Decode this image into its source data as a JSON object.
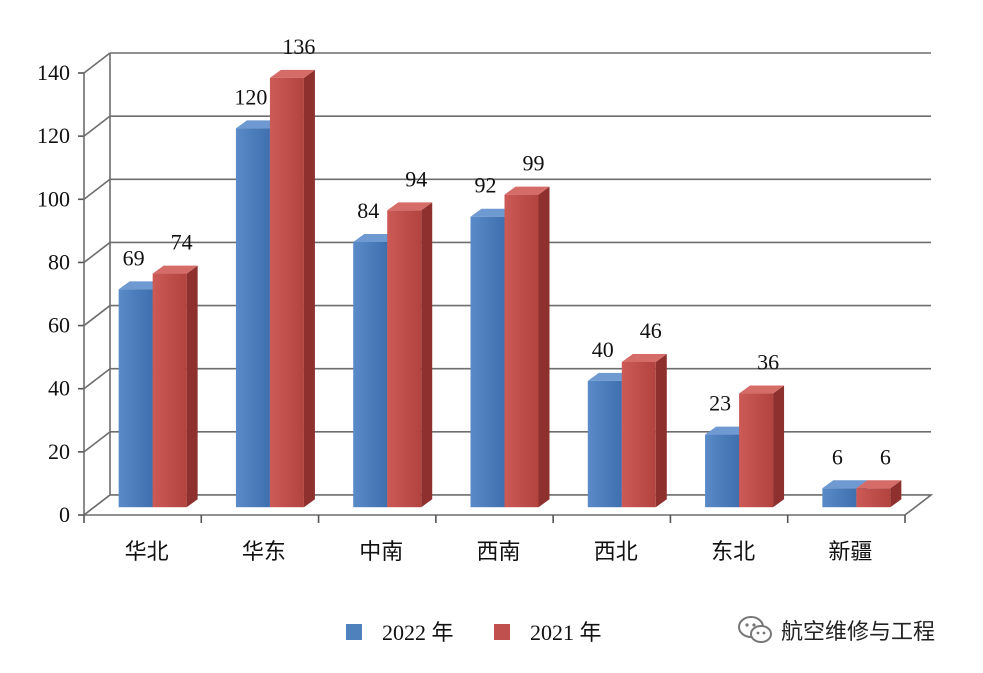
{
  "chart_data": {
    "type": "bar",
    "categories": [
      "华北",
      "华东",
      "中南",
      "西南",
      "西北",
      "东北",
      "新疆"
    ],
    "series": [
      {
        "name": "2022 年",
        "values": [
          69,
          120,
          84,
          92,
          40,
          23,
          6
        ],
        "color": "#4f81bd"
      },
      {
        "name": "2021 年",
        "values": [
          74,
          136,
          94,
          99,
          46,
          36,
          6
        ],
        "color": "#c0504d"
      }
    ],
    "yticks": [
      "0",
      "20",
      "40",
      "60",
      "80",
      "100",
      "120",
      "140"
    ],
    "ylim": [
      0,
      140
    ],
    "grid": true,
    "legend_position": "bottom-center",
    "style": "3d-clustered-column"
  },
  "watermark": {
    "text": "航空维修与工程",
    "icon": "wechat-icon"
  }
}
